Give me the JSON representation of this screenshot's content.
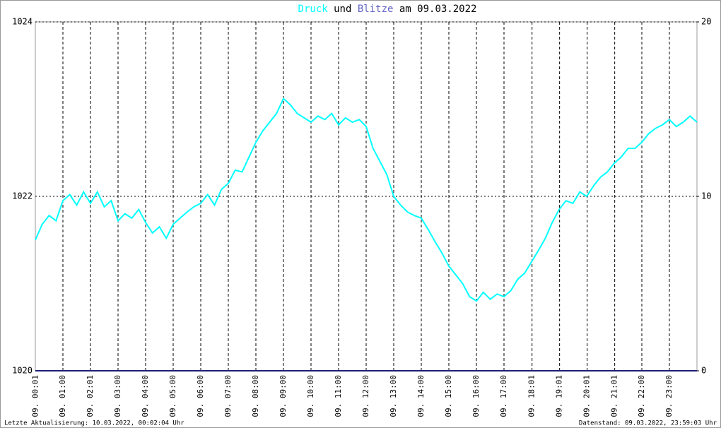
{
  "chart_data": {
    "type": "line",
    "title_connector": "und",
    "title_suffix": "am 09.03.2022",
    "footer_left": "Letzte Aktualisierung: 10.03.2022, 00:02:04 Uhr",
    "footer_right": "Datenstand: 09.03.2022, 23:59:03 Uhr",
    "x": [
      0,
      0.25,
      0.5,
      0.75,
      1,
      1.25,
      1.5,
      1.75,
      2,
      2.25,
      2.5,
      2.75,
      3,
      3.25,
      3.5,
      3.75,
      4,
      4.25,
      4.5,
      4.75,
      5,
      5.25,
      5.5,
      5.75,
      6,
      6.25,
      6.5,
      6.75,
      7,
      7.25,
      7.5,
      7.75,
      8,
      8.25,
      8.5,
      8.75,
      9,
      9.25,
      9.5,
      9.75,
      10,
      10.25,
      10.5,
      10.75,
      11,
      11.25,
      11.5,
      11.75,
      12,
      12.25,
      12.5,
      12.75,
      13,
      13.25,
      13.5,
      13.75,
      14,
      14.25,
      14.5,
      14.75,
      15,
      15.25,
      15.5,
      15.75,
      16,
      16.25,
      16.5,
      16.75,
      17,
      17.25,
      17.5,
      17.75,
      18,
      18.25,
      18.5,
      18.75,
      19,
      19.25,
      19.5,
      19.75,
      20,
      20.25,
      20.5,
      20.75,
      21,
      21.25,
      21.5,
      21.75,
      22,
      22.25,
      22.5,
      22.75,
      23,
      23.25,
      23.5,
      23.75,
      24
    ],
    "series": [
      {
        "name": "Druck",
        "color": "#00ffff",
        "axis": "y",
        "values": [
          1021.5,
          1021.68,
          1021.78,
          1021.72,
          1021.95,
          1022.02,
          1021.9,
          1022.05,
          1021.92,
          1022.05,
          1021.88,
          1021.95,
          1021.72,
          1021.8,
          1021.75,
          1021.85,
          1021.7,
          1021.58,
          1021.65,
          1021.52,
          1021.68,
          1021.75,
          1021.82,
          1021.88,
          1021.92,
          1022.02,
          1021.9,
          1022.08,
          1022.15,
          1022.3,
          1022.28,
          1022.45,
          1022.62,
          1022.75,
          1022.85,
          1022.95,
          1023.12,
          1023.05,
          1022.95,
          1022.9,
          1022.85,
          1022.92,
          1022.88,
          1022.95,
          1022.82,
          1022.9,
          1022.85,
          1022.88,
          1022.8,
          1022.55,
          1022.4,
          1022.25,
          1022.0,
          1021.9,
          1021.82,
          1021.78,
          1021.75,
          1021.62,
          1021.48,
          1021.35,
          1021.2,
          1021.1,
          1021.0,
          1020.85,
          1020.8,
          1020.9,
          1020.82,
          1020.88,
          1020.85,
          1020.92,
          1021.05,
          1021.12,
          1021.25,
          1021.38,
          1021.52,
          1021.7,
          1021.85,
          1021.95,
          1021.92,
          1022.05,
          1022.0,
          1022.12,
          1022.22,
          1022.28,
          1022.38,
          1022.45,
          1022.55,
          1022.55,
          1022.62,
          1022.72,
          1022.78,
          1022.82,
          1022.88,
          1022.8,
          1022.85,
          1022.92,
          1022.85
        ]
      },
      {
        "name": "Blitze",
        "color": "#6464c8",
        "line_color": "#1e1e78",
        "axis": "y2",
        "values": [
          0,
          0,
          0,
          0,
          0,
          0,
          0,
          0,
          0,
          0,
          0,
          0,
          0,
          0,
          0,
          0,
          0,
          0,
          0,
          0,
          0,
          0,
          0,
          0,
          0,
          0,
          0,
          0,
          0,
          0,
          0,
          0,
          0,
          0,
          0,
          0,
          0,
          0,
          0,
          0,
          0,
          0,
          0,
          0,
          0,
          0,
          0,
          0,
          0,
          0,
          0,
          0,
          0,
          0,
          0,
          0,
          0,
          0,
          0,
          0,
          0,
          0,
          0,
          0,
          0,
          0,
          0,
          0,
          0,
          0,
          0,
          0,
          0,
          0,
          0,
          0,
          0,
          0,
          0,
          0,
          0,
          0,
          0,
          0,
          0,
          0,
          0,
          0,
          0,
          0,
          0,
          0,
          0,
          0,
          0,
          0,
          0
        ]
      }
    ],
    "xlim": [
      0,
      24
    ],
    "xticks": [
      {
        "value": 0.0167,
        "label": "09. 00:01"
      },
      {
        "value": 1,
        "label": "09. 01:00"
      },
      {
        "value": 2,
        "label": "09. 02:01"
      },
      {
        "value": 3,
        "label": "09. 03:00"
      },
      {
        "value": 4,
        "label": "09. 04:00"
      },
      {
        "value": 5,
        "label": "09. 05:00"
      },
      {
        "value": 6,
        "label": "09. 06:00"
      },
      {
        "value": 7,
        "label": "09. 07:00"
      },
      {
        "value": 8,
        "label": "09. 08:00"
      },
      {
        "value": 9,
        "label": "09. 09:00"
      },
      {
        "value": 10,
        "label": "09. 10:00"
      },
      {
        "value": 11,
        "label": "09. 11:00"
      },
      {
        "value": 12,
        "label": "09. 12:00"
      },
      {
        "value": 13,
        "label": "09. 13:00"
      },
      {
        "value": 14,
        "label": "09. 14:00"
      },
      {
        "value": 15,
        "label": "09. 15:00"
      },
      {
        "value": 16,
        "label": "09. 16:00"
      },
      {
        "value": 17,
        "label": "09. 17:00"
      },
      {
        "value": 18.0167,
        "label": "09. 18:01"
      },
      {
        "value": 19.0167,
        "label": "09. 19:01"
      },
      {
        "value": 20.0167,
        "label": "09. 20:01"
      },
      {
        "value": 21.0167,
        "label": "09. 21:01"
      },
      {
        "value": 22,
        "label": "09. 22:00"
      },
      {
        "value": 23,
        "label": "09. 23:00"
      }
    ],
    "ylim": [
      1020,
      1024
    ],
    "yticks": [
      1020,
      1022,
      1024
    ],
    "y2lim": [
      0,
      20
    ],
    "y2ticks": [
      0,
      10,
      20
    ],
    "grid": true
  }
}
